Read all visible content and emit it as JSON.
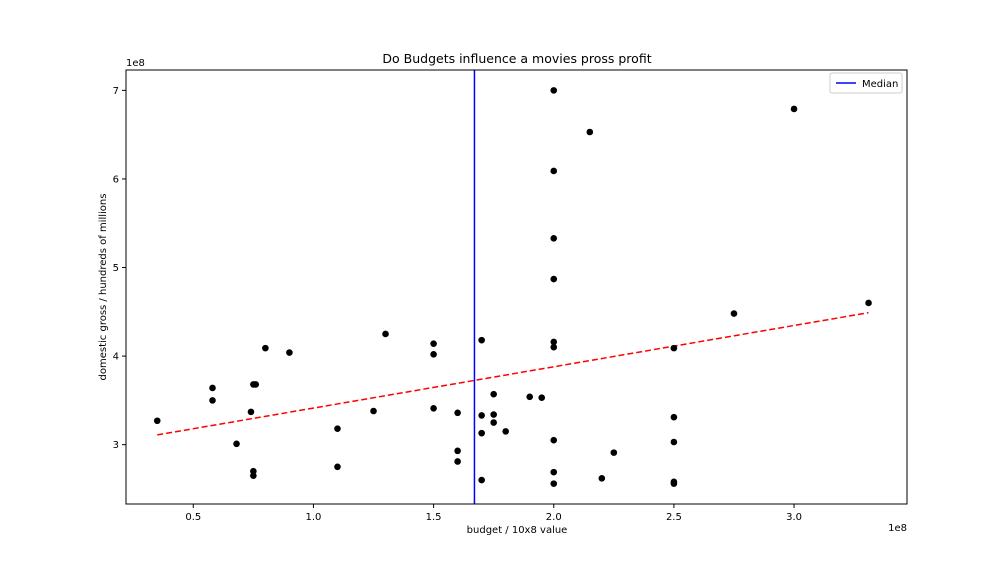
{
  "chart_data": {
    "type": "scatter",
    "title": "Do Budgets influence a movies pross profit",
    "xlabel": "budget / 10x8 value",
    "ylabel": "domestic gross / hundreds of millions",
    "x_offset_label": "1e8",
    "y_offset_label": "1e8",
    "xlim": [
      0.22,
      3.47
    ],
    "ylim": [
      2.33,
      7.23
    ],
    "x_ticks": [
      {
        "value": 0.5,
        "label": "0.5"
      },
      {
        "value": 1.0,
        "label": "1.0"
      },
      {
        "value": 1.5,
        "label": "1.5"
      },
      {
        "value": 2.0,
        "label": "2.0"
      },
      {
        "value": 2.5,
        "label": "2.5"
      },
      {
        "value": 3.0,
        "label": "3.0"
      }
    ],
    "y_ticks": [
      {
        "value": 3,
        "label": "3"
      },
      {
        "value": 4,
        "label": "4"
      },
      {
        "value": 5,
        "label": "5"
      },
      {
        "value": 6,
        "label": "6"
      },
      {
        "value": 7,
        "label": "7"
      }
    ],
    "grid": false,
    "legend": {
      "position": "top-right",
      "entries": [
        {
          "label": "Median",
          "color": "#0000ff"
        }
      ]
    },
    "points": {
      "color": "#000000",
      "x": [
        0.35,
        0.58,
        0.58,
        0.68,
        0.74,
        0.75,
        0.75,
        0.75,
        0.76,
        0.8,
        0.9,
        1.1,
        1.1,
        1.25,
        1.3,
        1.5,
        1.5,
        1.5,
        1.6,
        1.6,
        1.6,
        1.7,
        1.7,
        1.7,
        1.7,
        1.75,
        1.75,
        1.75,
        1.8,
        1.9,
        1.95,
        2.0,
        2.0,
        2.0,
        2.0,
        2.0,
        2.0,
        2.0,
        2.0,
        2.0,
        2.15,
        2.2,
        2.25,
        2.5,
        2.5,
        2.5,
        2.5,
        2.5,
        2.75,
        3.0,
        3.31
      ],
      "y": [
        3.27,
        3.64,
        3.5,
        3.01,
        3.37,
        3.68,
        2.7,
        2.65,
        3.68,
        4.09,
        4.04,
        3.18,
        2.75,
        3.38,
        4.25,
        4.14,
        4.02,
        3.41,
        3.36,
        2.93,
        2.81,
        4.18,
        3.33,
        3.13,
        2.6,
        3.57,
        3.34,
        3.25,
        3.15,
        3.54,
        3.53,
        7.0,
        6.09,
        5.33,
        4.87,
        4.16,
        4.1,
        3.05,
        2.69,
        2.56,
        6.53,
        2.62,
        2.91,
        4.09,
        3.31,
        3.03,
        2.58,
        2.56,
        4.48,
        6.79,
        4.6
      ]
    },
    "trend_line": {
      "color": "#ff0000",
      "style": "dashed",
      "x": [
        0.35,
        3.31
      ],
      "y": [
        3.11,
        4.49
      ]
    },
    "median_line": {
      "label": "Median",
      "color": "#0000ff",
      "x": 1.67
    }
  }
}
